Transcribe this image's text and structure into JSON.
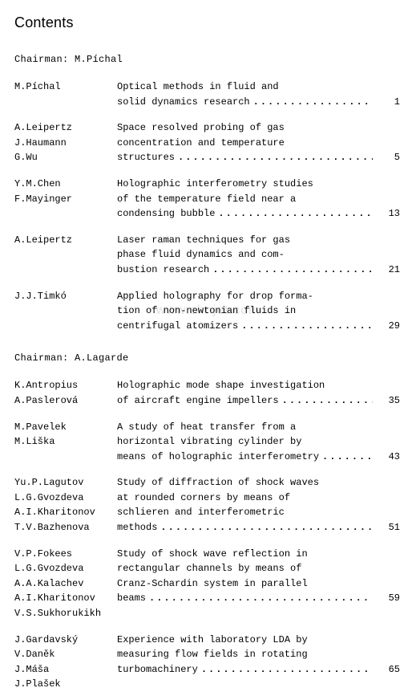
{
  "title": "Contents",
  "watermark": "www.chnjet.com",
  "dots_fill": "..............................",
  "sections": [
    {
      "chairman": "Chairman: M.Píchal",
      "entries": [
        {
          "authors": [
            "M.Píchal"
          ],
          "lines": [
            "Optical methods in fluid and"
          ],
          "last": "solid dynamics research",
          "page": "1"
        },
        {
          "authors": [
            "A.Leipertz",
            "J.Haumann",
            "G.Wu"
          ],
          "lines": [
            "Space resolved probing of gas",
            "concentration and temperature"
          ],
          "last": "structures",
          "page": "5"
        },
        {
          "authors": [
            "Y.M.Chen",
            "F.Mayinger"
          ],
          "lines": [
            "Holographic interferometry studies",
            "of the temperature field near a"
          ],
          "last": "condensing bubble",
          "page": "13"
        },
        {
          "authors": [
            "A.Leipertz"
          ],
          "lines": [
            "Laser raman techniques for gas",
            "phase fluid dynamics and com-"
          ],
          "last": "bustion research",
          "page": "21"
        },
        {
          "authors": [
            "J.J.Timkó"
          ],
          "lines": [
            "Applied holography for drop forma-",
            "tion of non-newtonian fluids in"
          ],
          "last": "centrifugal atomizers",
          "page": "29"
        }
      ]
    },
    {
      "chairman": "Chairman: A.Lagarde",
      "entries": [
        {
          "authors": [
            "K.Antropius",
            "A.Paslerová"
          ],
          "lines": [
            "Holographic mode shape investigation"
          ],
          "last": "of aircraft engine impellers",
          "page": "35"
        },
        {
          "authors": [
            "M.Pavelek",
            "M.Liška"
          ],
          "lines": [
            "A study of heat transfer from a",
            "horizontal vibrating cylinder by"
          ],
          "last": "means of holographic interferometry",
          "page": "43"
        },
        {
          "authors": [
            "Yu.P.Lagutov",
            "L.G.Gvozdeva",
            "A.I.Kharitonov",
            "T.V.Bazhenova"
          ],
          "lines": [
            "Study of diffraction of shock waves",
            "at rounded corners by means of",
            "schlieren and interferometric"
          ],
          "last": "methods",
          "page": "51"
        },
        {
          "authors": [
            "V.P.Fokees",
            "L.G.Gvozdeva",
            "A.A.Kalachev",
            "A.I.Kharitonov",
            "V.S.Sukhorukikh"
          ],
          "lines": [
            "Study of shock wave reflection in",
            "rectangular channels by means of",
            "Cranz-Schardin system in parallel"
          ],
          "last": "beams",
          "page": "59"
        },
        {
          "authors": [
            "J.Gardavský",
            "V.Daněk",
            "J.Máša",
            "J.Plašek"
          ],
          "lines": [
            "Experience with laboratory LDA by",
            "measuring flow fields in rotating"
          ],
          "last": "turbomachinery",
          "page": "65"
        }
      ]
    }
  ]
}
